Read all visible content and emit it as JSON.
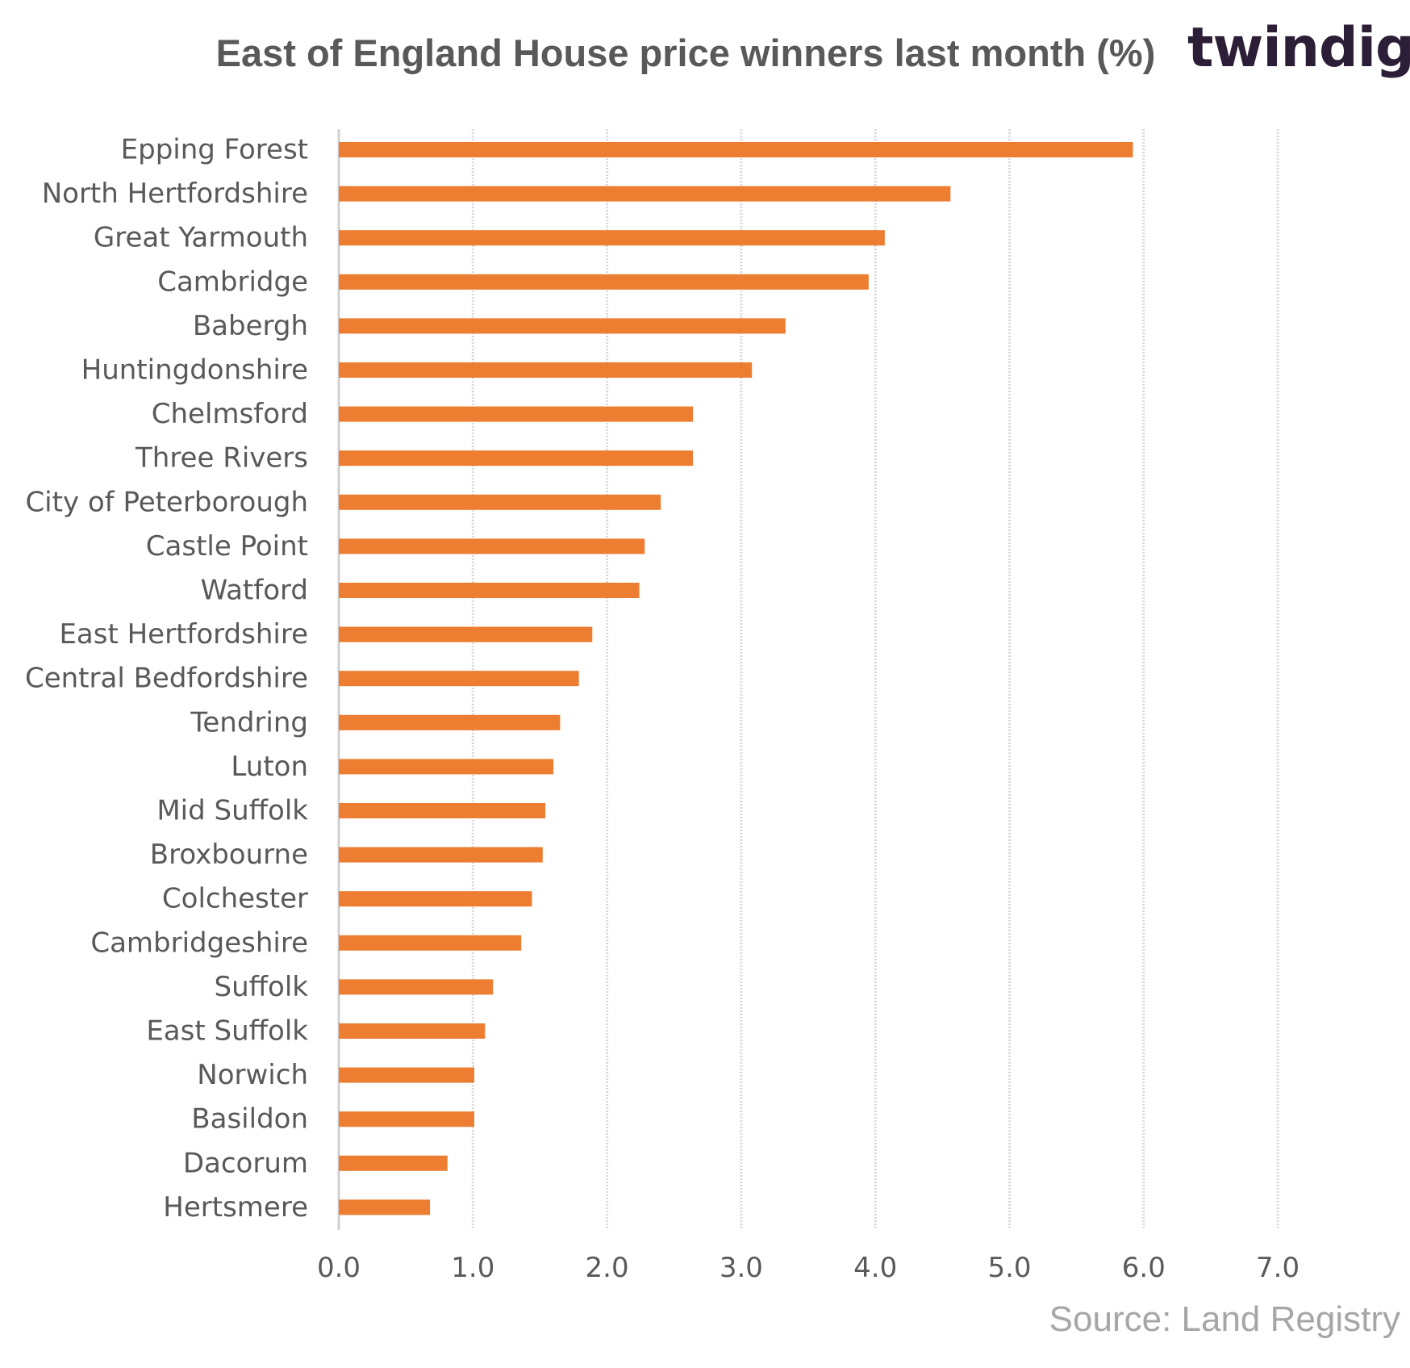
{
  "brand": {
    "name": "twindig",
    "accent_color": "#f08030",
    "text_color": "#2b1e36"
  },
  "source": "Source: Land Registry",
  "chart_data": {
    "type": "bar",
    "orientation": "horizontal",
    "title": "East of England  House price  winners last month (%)",
    "xlabel": "",
    "ylabel": "",
    "xlim": [
      0,
      7
    ],
    "xticks": [
      "0.0",
      "1.0",
      "2.0",
      "3.0",
      "4.0",
      "5.0",
      "6.0",
      "7.0"
    ],
    "grid": "vertical",
    "bar_color": "#ed7d31",
    "categories": [
      "Epping Forest",
      "North Hertfordshire",
      "Great Yarmouth",
      "Cambridge",
      "Babergh",
      "Huntingdonshire",
      "Chelmsford",
      "Three Rivers",
      "City of Peterborough",
      "Castle Point",
      "Watford",
      "East Hertfordshire",
      "Central Bedfordshire",
      "Tendring",
      "Luton",
      "Mid Suffolk",
      "Broxbourne",
      "Colchester",
      "Cambridgeshire",
      "Suffolk",
      "East Suffolk",
      "Norwich",
      "Basildon",
      "Dacorum",
      "Hertsmere"
    ],
    "values": [
      5.92,
      4.56,
      4.07,
      3.95,
      3.33,
      3.08,
      2.64,
      2.64,
      2.4,
      2.28,
      2.24,
      1.89,
      1.79,
      1.65,
      1.6,
      1.54,
      1.52,
      1.44,
      1.36,
      1.15,
      1.09,
      1.01,
      1.01,
      0.81,
      0.68
    ]
  }
}
